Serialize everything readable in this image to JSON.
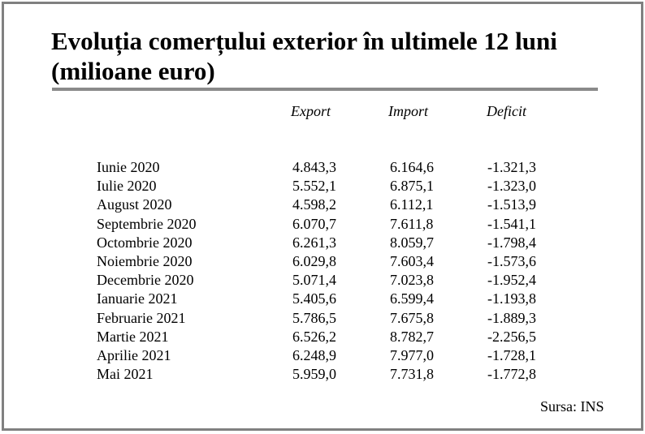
{
  "title_line1": "Evoluția comerțului exterior în ultimele 12 luni",
  "title_line2": "(milioane euro)",
  "columns": {
    "export": "Export",
    "import": "Import",
    "deficit": "Deficit"
  },
  "rows": [
    {
      "month": "Iunie 2020",
      "export": "4.843,3",
      "import": "6.164,6",
      "deficit": "-1.321,3"
    },
    {
      "month": "Iulie 2020",
      "export": "5.552,1",
      "import": "6.875,1",
      "deficit": "-1.323,0"
    },
    {
      "month": "August 2020",
      "export": "4.598,2",
      "import": "6.112,1",
      "deficit": "-1.513,9"
    },
    {
      "month": "Septembrie 2020",
      "export": "6.070,7",
      "import": "7.611,8",
      "deficit": "-1.541,1"
    },
    {
      "month": "Octombrie 2020",
      "export": "6.261,3",
      "import": "8.059,7",
      "deficit": "-1.798,4"
    },
    {
      "month": "Noiembrie 2020",
      "export": "6.029,8",
      "import": "7.603,4",
      "deficit": "-1.573,6"
    },
    {
      "month": "Decembrie 2020",
      "export": "5.071,4",
      "import": "7.023,8",
      "deficit": "-1.952,4"
    },
    {
      "month": "Ianuarie 2021",
      "export": "5.405,6",
      "import": "6.599,4",
      "deficit": "-1.193,8"
    },
    {
      "month": "Februarie 2021",
      "export": "5.786,5",
      "import": "7.675,8",
      "deficit": "-1.889,3"
    },
    {
      "month": "Martie 2021",
      "export": "6.526,2",
      "import": "8.782,7",
      "deficit": "-2.256,5"
    },
    {
      "month": "Aprilie 2021",
      "export": "6.248,9",
      "import": "7.977,0",
      "deficit": "-1.728,1"
    },
    {
      "month": "Mai 2021",
      "export": "5.959,0",
      "import": "7.731,8",
      "deficit": "-1.772,8"
    }
  ],
  "source": "Sursa: INS",
  "colors": {
    "border": "#808080",
    "rule": "#8a8a8a",
    "text": "#000000"
  }
}
